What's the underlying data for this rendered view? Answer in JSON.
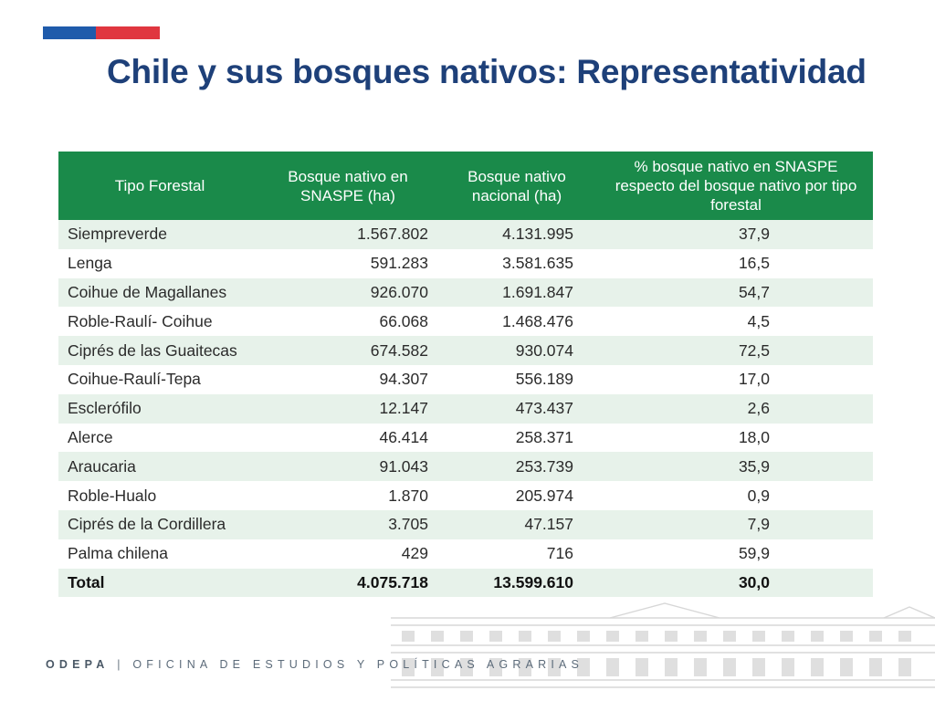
{
  "slide": {
    "title": "Chile y sus bosques nativos: Representatividad"
  },
  "table": {
    "headers": [
      "Tipo Forestal",
      "Bosque nativo en SNASPE (ha)",
      "Bosque nativo nacional (ha)",
      "% bosque nativo en SNASPE respecto del bosque nativo por tipo forestal"
    ],
    "rows": [
      [
        "Siempreverde",
        "1.567.802",
        "4.131.995",
        "37,9"
      ],
      [
        "Lenga",
        "591.283",
        "3.581.635",
        "16,5"
      ],
      [
        "Coihue de Magallanes",
        "926.070",
        "1.691.847",
        "54,7"
      ],
      [
        "Roble-Raulí- Coihue",
        "66.068",
        "1.468.476",
        "4,5"
      ],
      [
        "Ciprés de las Guaitecas",
        "674.582",
        "930.074",
        "72,5"
      ],
      [
        "Coihue-Raulí-Tepa",
        "94.307",
        "556.189",
        "17,0"
      ],
      [
        "Esclerófilo",
        "12.147",
        "473.437",
        "2,6"
      ],
      [
        "Alerce",
        "46.414",
        "258.371",
        "18,0"
      ],
      [
        "Araucaria",
        "91.043",
        "253.739",
        "35,9"
      ],
      [
        "Roble-Hualo",
        "1.870",
        "205.974",
        "0,9"
      ],
      [
        "Ciprés de la Cordillera",
        "3.705",
        "47.157",
        "7,9"
      ],
      [
        "Palma chilena",
        "429",
        "716",
        "59,9"
      ]
    ],
    "total": [
      "Total",
      "4.075.718",
      "13.599.610",
      "30,0"
    ]
  },
  "footer": {
    "org": "ODEPA",
    "separator": "|",
    "name": "OFICINA DE ESTUDIOS Y POLÍTICAS AGRARIAS"
  },
  "colors": {
    "title": "#1e4079",
    "header_green": "#1a8a4a",
    "row_stripe": "#e7f2ea",
    "flag_blue": "#1f5bab",
    "flag_red": "#e0363f"
  }
}
